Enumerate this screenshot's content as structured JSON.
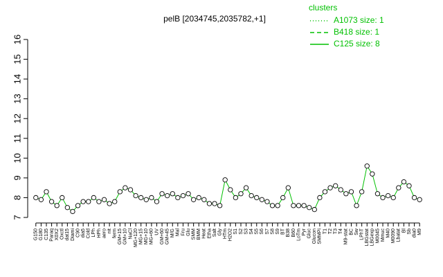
{
  "chart_data": {
    "type": "line",
    "title": "pelB [2034745,2035782,+1]",
    "categories": [
      "G150",
      "G180",
      "C135",
      "Paraq",
      "X0X2",
      "Oxctl",
      "dat15",
      "Diami",
      "C90",
      "dia5",
      "Cold",
      "LPh",
      "HPh",
      "aero",
      "nit",
      "ferm",
      "GM+15",
      "GM+10",
      "NaCl",
      "MG+120",
      "MG+15",
      "MG+10",
      "MG+60",
      "UV",
      "GM+60",
      "GM+45",
      "M/G",
      "Mal",
      "Fru",
      "Glu",
      "SMM",
      "BMM",
      "Heat",
      "Etha",
      "Salt",
      "Gly",
      "HTm",
      "H2O2",
      "S1",
      "S2",
      "S3",
      "S4",
      "S5",
      "S6",
      "S7",
      "S8",
      "S9",
      "BT",
      "B38",
      "B60",
      "LoTm",
      "Pyr",
      "Gluc",
      "Glucon",
      "SMMPi",
      "T1",
      "T2",
      "T3",
      "T4",
      "M9-stat",
      "BC",
      "Sw",
      "LPhT",
      "LBGstat",
      "LBGexp",
      "M0045",
      "Mmuc",
      "M40",
      "M0090",
      "Lbatat",
      "Bl",
      "Sb",
      "dia0",
      "M9"
    ],
    "series": [
      {
        "name": "C125 size: 8",
        "color": "#00c000",
        "values": [
          8.0,
          7.9,
          8.3,
          7.8,
          7.6,
          8.0,
          7.5,
          7.3,
          7.6,
          7.8,
          7.8,
          8.0,
          7.8,
          7.9,
          7.7,
          7.8,
          8.3,
          8.5,
          8.4,
          8.1,
          8.0,
          7.9,
          8.0,
          7.8,
          8.2,
          8.1,
          8.2,
          8.0,
          8.1,
          8.2,
          7.9,
          8.0,
          7.9,
          7.7,
          7.7,
          7.6,
          8.9,
          8.4,
          8.0,
          8.2,
          8.5,
          8.1,
          8.0,
          7.9,
          7.8,
          7.6,
          7.6,
          8.0,
          8.5,
          7.6,
          7.6,
          7.6,
          7.5,
          7.4,
          8.0,
          8.3,
          8.5,
          8.6,
          8.4,
          8.2,
          8.3,
          7.6,
          8.3,
          9.6,
          9.2,
          8.2,
          8.0,
          8.1,
          8.0,
          8.5,
          8.8,
          8.6,
          8.0,
          7.9
        ]
      }
    ],
    "legend": {
      "title": "clusters",
      "entries": [
        {
          "name": "A1073 size: 1",
          "dash": "1,3"
        },
        {
          "name": "B418 size: 1",
          "dash": "6,4"
        },
        {
          "name": "C125 size: 8",
          "dash": "none"
        }
      ]
    },
    "ylim": [
      7,
      16
    ],
    "yticks": [
      7,
      8,
      9,
      10,
      11,
      12,
      13,
      14,
      15,
      16
    ]
  }
}
